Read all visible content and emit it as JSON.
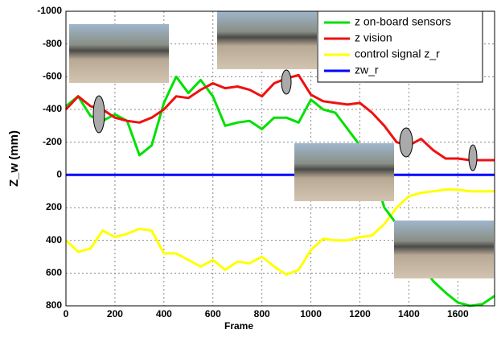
{
  "chart_data": {
    "type": "line",
    "x_label": "Frame",
    "y_label": "Z_w (mm)",
    "x": [
      0,
      50,
      100,
      150,
      200,
      250,
      300,
      350,
      400,
      450,
      500,
      550,
      600,
      650,
      700,
      750,
      800,
      850,
      900,
      950,
      1000,
      1050,
      1100,
      1150,
      1200,
      1250,
      1300,
      1350,
      1400,
      1450,
      1500,
      1550,
      1600,
      1650,
      1700,
      1750
    ],
    "series": [
      {
        "name": "z on-board sensors",
        "color": "#00e000",
        "values": [
          -420,
          -480,
          -360,
          -330,
          -370,
          -330,
          -120,
          -180,
          -440,
          -600,
          -500,
          -580,
          -480,
          -300,
          -320,
          -330,
          -280,
          -350,
          -350,
          -320,
          -460,
          -400,
          -380,
          -280,
          -180,
          -50,
          200,
          300,
          450,
          550,
          650,
          720,
          780,
          800,
          790,
          740
        ]
      },
      {
        "name": "z vision",
        "color": "#ee1111",
        "values": [
          -400,
          -480,
          -420,
          -400,
          -350,
          -330,
          -320,
          -350,
          -400,
          -480,
          -470,
          -520,
          -560,
          -530,
          -540,
          -520,
          -480,
          -560,
          -590,
          -610,
          -490,
          -450,
          -440,
          -430,
          -440,
          -380,
          -300,
          -200,
          -180,
          -220,
          -150,
          -100,
          -100,
          -90,
          -90,
          -90
        ]
      },
      {
        "name": "control signal z_r",
        "color": "#ffff00",
        "values": [
          400,
          470,
          450,
          340,
          380,
          360,
          330,
          340,
          480,
          480,
          520,
          560,
          520,
          580,
          530,
          540,
          500,
          560,
          610,
          580,
          460,
          390,
          400,
          400,
          380,
          370,
          300,
          200,
          130,
          110,
          100,
          90,
          90,
          100,
          100,
          100
        ]
      },
      {
        "name": "zw_r",
        "color": "#0000ff",
        "values": [
          0,
          0,
          0,
          0,
          0,
          0,
          0,
          0,
          0,
          0,
          0,
          0,
          0,
          0,
          0,
          0,
          0,
          0,
          0,
          0,
          0,
          0,
          0,
          0,
          0,
          0,
          0,
          0,
          0,
          0,
          0,
          0,
          0,
          0,
          0,
          0
        ]
      }
    ],
    "xlim": [
      0,
      1750
    ],
    "xticks": [
      0,
      200,
      400,
      600,
      800,
      1000,
      1200,
      1400,
      1600
    ],
    "ylim": [
      -1000,
      800
    ],
    "y_inverted": true,
    "yticks": [
      -1000,
      -800,
      -600,
      -400,
      -200,
      0,
      200,
      400,
      600,
      800
    ],
    "grid": true,
    "legend": "upper right"
  }
}
